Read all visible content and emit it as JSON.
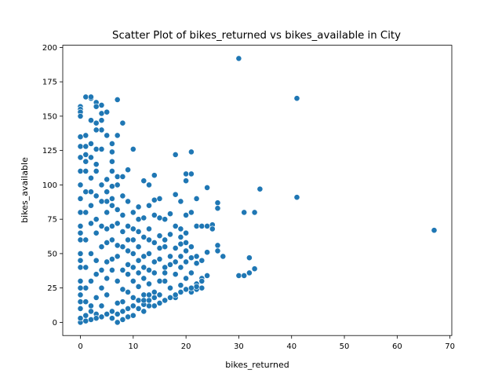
{
  "chart_data": {
    "type": "scatter",
    "title": "Scatter Plot of bikes_returned vs bikes_available in City",
    "xlabel": "bikes_returned",
    "ylabel": "bikes_available",
    "xlim": [
      -3.35,
      70.35
    ],
    "ylim": [
      -9.6,
      201.6
    ],
    "xticks": [
      0,
      10,
      20,
      30,
      40,
      50,
      60,
      70
    ],
    "yticks": [
      0,
      25,
      50,
      75,
      100,
      125,
      150,
      175,
      200
    ],
    "grid": false,
    "legend": "none",
    "color": "#1f77b4",
    "series": [
      {
        "points": [
          [
            30,
            192
          ],
          [
            41,
            163
          ],
          [
            67,
            67
          ],
          [
            41,
            91
          ],
          [
            34,
            97
          ],
          [
            33,
            80
          ],
          [
            31,
            80
          ],
          [
            26,
            87
          ],
          [
            26,
            83
          ],
          [
            24,
            98
          ],
          [
            21,
            124
          ],
          [
            18,
            122
          ],
          [
            20,
            108
          ],
          [
            21,
            108
          ],
          [
            20,
            103
          ],
          [
            10,
            126
          ],
          [
            7,
            136
          ],
          [
            8,
            145
          ],
          [
            7,
            162
          ],
          [
            6,
            124
          ],
          [
            6,
            130
          ],
          [
            6,
            117
          ],
          [
            9,
            111
          ],
          [
            7,
            106
          ],
          [
            8,
            106
          ],
          [
            12,
            103
          ],
          [
            13,
            100
          ],
          [
            14,
            107
          ],
          [
            14,
            89
          ],
          [
            15,
            90
          ],
          [
            18,
            93
          ],
          [
            19,
            88
          ],
          [
            22,
            90
          ],
          [
            20,
            78
          ],
          [
            21,
            80
          ],
          [
            17,
            79
          ],
          [
            16,
            75
          ],
          [
            15,
            76
          ],
          [
            18,
            70
          ],
          [
            19,
            68
          ],
          [
            20,
            65
          ],
          [
            22,
            70
          ],
          [
            23,
            70
          ],
          [
            24,
            70
          ],
          [
            25,
            71
          ],
          [
            25,
            68
          ],
          [
            27,
            48
          ],
          [
            26,
            56
          ],
          [
            26,
            52
          ],
          [
            30,
            34
          ],
          [
            31,
            34
          ],
          [
            32,
            36
          ],
          [
            33,
            39
          ],
          [
            32,
            47
          ],
          [
            24,
            51
          ],
          [
            24,
            34
          ],
          [
            23,
            32
          ],
          [
            23,
            25
          ],
          [
            22,
            28
          ],
          [
            22,
            43
          ],
          [
            21,
            47
          ],
          [
            20,
            52
          ],
          [
            19,
            57
          ],
          [
            19,
            40
          ],
          [
            18,
            35
          ],
          [
            17,
            64
          ],
          [
            17,
            48
          ],
          [
            16,
            30
          ],
          [
            16,
            55
          ],
          [
            15,
            20
          ],
          [
            15,
            63
          ],
          [
            14,
            44
          ],
          [
            14,
            58
          ],
          [
            13,
            12
          ],
          [
            13,
            28
          ],
          [
            13,
            50
          ],
          [
            12,
            8
          ],
          [
            12,
            20
          ],
          [
            12,
            40
          ],
          [
            11,
            55
          ],
          [
            11,
            75
          ],
          [
            10,
            5
          ],
          [
            10,
            30
          ],
          [
            9,
            10
          ],
          [
            9,
            22
          ],
          [
            8,
            2
          ],
          [
            8,
            15
          ],
          [
            7,
            0
          ],
          [
            0,
            0
          ],
          [
            0,
            3
          ],
          [
            1,
            1
          ],
          [
            2,
            2
          ],
          [
            0,
            157
          ],
          [
            0,
            155
          ],
          [
            0,
            153
          ],
          [
            0,
            150
          ],
          [
            2,
            163
          ],
          [
            3,
            160
          ],
          [
            3,
            157
          ],
          [
            4,
            158
          ],
          [
            4,
            152
          ],
          [
            1,
            164
          ],
          [
            2,
            164
          ],
          [
            5,
            153
          ],
          [
            4,
            147
          ],
          [
            2,
            147
          ],
          [
            3,
            145
          ],
          [
            1,
            136
          ],
          [
            0,
            135
          ],
          [
            0,
            128
          ],
          [
            2,
            130
          ],
          [
            1,
            122
          ],
          [
            0,
            120
          ],
          [
            1,
            117
          ],
          [
            3,
            126
          ],
          [
            4,
            126
          ],
          [
            4,
            140
          ],
          [
            3,
            140
          ],
          [
            5,
            136
          ],
          [
            3,
            110
          ],
          [
            2,
            105
          ],
          [
            4,
            100
          ],
          [
            5,
            95
          ],
          [
            6,
            99
          ],
          [
            7,
            100
          ],
          [
            6,
            90
          ],
          [
            8,
            92
          ],
          [
            9,
            88
          ],
          [
            10,
            80
          ],
          [
            11,
            84
          ],
          [
            12,
            76
          ],
          [
            8,
            78
          ],
          [
            6,
            85
          ],
          [
            5,
            80
          ],
          [
            7,
            72
          ],
          [
            9,
            70
          ],
          [
            11,
            66
          ],
          [
            13,
            68
          ],
          [
            13,
            60
          ],
          [
            12,
            62
          ],
          [
            10,
            60
          ],
          [
            10,
            50
          ],
          [
            11,
            45
          ],
          [
            9,
            42
          ],
          [
            8,
            55
          ],
          [
            7,
            48
          ],
          [
            6,
            60
          ],
          [
            5,
            68
          ],
          [
            3,
            75
          ],
          [
            2,
            85
          ],
          [
            1,
            95
          ],
          [
            0,
            110
          ],
          [
            0,
            100
          ],
          [
            0,
            90
          ],
          [
            0,
            80
          ],
          [
            0,
            70
          ],
          [
            0,
            60
          ],
          [
            0,
            50
          ],
          [
            0,
            40
          ],
          [
            0,
            30
          ],
          [
            0,
            20
          ],
          [
            0,
            10
          ],
          [
            1,
            5
          ],
          [
            2,
            12
          ],
          [
            3,
            18
          ],
          [
            4,
            25
          ],
          [
            5,
            32
          ],
          [
            6,
            38
          ],
          [
            7,
            30
          ],
          [
            5,
            20
          ],
          [
            4,
            12
          ],
          [
            3,
            6
          ],
          [
            6,
            8
          ],
          [
            7,
            14
          ],
          [
            8,
            24
          ],
          [
            9,
            35
          ],
          [
            10,
            18
          ],
          [
            11,
            26
          ],
          [
            12,
            32
          ],
          [
            13,
            38
          ],
          [
            14,
            22
          ],
          [
            15,
            30
          ],
          [
            16,
            40
          ],
          [
            17,
            25
          ],
          [
            18,
            18
          ],
          [
            19,
            27
          ],
          [
            20,
            32
          ],
          [
            21,
            22
          ],
          [
            22,
            24
          ],
          [
            23,
            30
          ],
          [
            14,
            12
          ],
          [
            15,
            14
          ],
          [
            16,
            16
          ],
          [
            17,
            18
          ],
          [
            18,
            20
          ],
          [
            19,
            22
          ],
          [
            20,
            24
          ],
          [
            21,
            25
          ],
          [
            22,
            26
          ],
          [
            11,
            10
          ],
          [
            12,
            13
          ],
          [
            13,
            16
          ],
          [
            14,
            36
          ],
          [
            15,
            46
          ],
          [
            16,
            60
          ],
          [
            18,
            44
          ],
          [
            19,
            48
          ],
          [
            20,
            44
          ],
          [
            21,
            36
          ],
          [
            10,
            40
          ],
          [
            9,
            60
          ],
          [
            8,
            66
          ],
          [
            7,
            56
          ],
          [
            6,
            46
          ],
          [
            5,
            44
          ],
          [
            4,
            55
          ],
          [
            3,
            65
          ],
          [
            2,
            72
          ],
          [
            1,
            80
          ],
          [
            1,
            60
          ],
          [
            1,
            40
          ],
          [
            1,
            25
          ],
          [
            2,
            30
          ],
          [
            2,
            50
          ],
          [
            3,
            35
          ],
          [
            3,
            45
          ],
          [
            4,
            38
          ],
          [
            4,
            70
          ],
          [
            5,
            58
          ],
          [
            5,
            88
          ],
          [
            6,
            70
          ],
          [
            7,
            82
          ],
          [
            8,
            38
          ],
          [
            9,
            52
          ],
          [
            10,
            68
          ],
          [
            11,
            36
          ],
          [
            12,
            48
          ],
          [
            13,
            85
          ],
          [
            14,
            78
          ],
          [
            15,
            54
          ],
          [
            16,
            36
          ],
          [
            17,
            42
          ],
          [
            18,
            54
          ],
          [
            19,
            62
          ],
          [
            20,
            58
          ],
          [
            21,
            55
          ],
          [
            22,
            48
          ],
          [
            23,
            45
          ],
          [
            2,
            95
          ],
          [
            3,
            92
          ],
          [
            4,
            88
          ],
          [
            5,
            104
          ],
          [
            6,
            110
          ],
          [
            3,
            115
          ],
          [
            2,
            120
          ],
          [
            1,
            128
          ],
          [
            1,
            110
          ],
          [
            0,
            65
          ],
          [
            0,
            45
          ],
          [
            0,
            25
          ],
          [
            0,
            15
          ],
          [
            1,
            15
          ],
          [
            2,
            8
          ],
          [
            3,
            3
          ],
          [
            4,
            4
          ],
          [
            5,
            6
          ],
          [
            6,
            3
          ],
          [
            7,
            6
          ],
          [
            8,
            8
          ],
          [
            9,
            4
          ],
          [
            10,
            12
          ],
          [
            11,
            16
          ],
          [
            12,
            16
          ],
          [
            13,
            20
          ],
          [
            14,
            18
          ]
        ]
      }
    ]
  }
}
